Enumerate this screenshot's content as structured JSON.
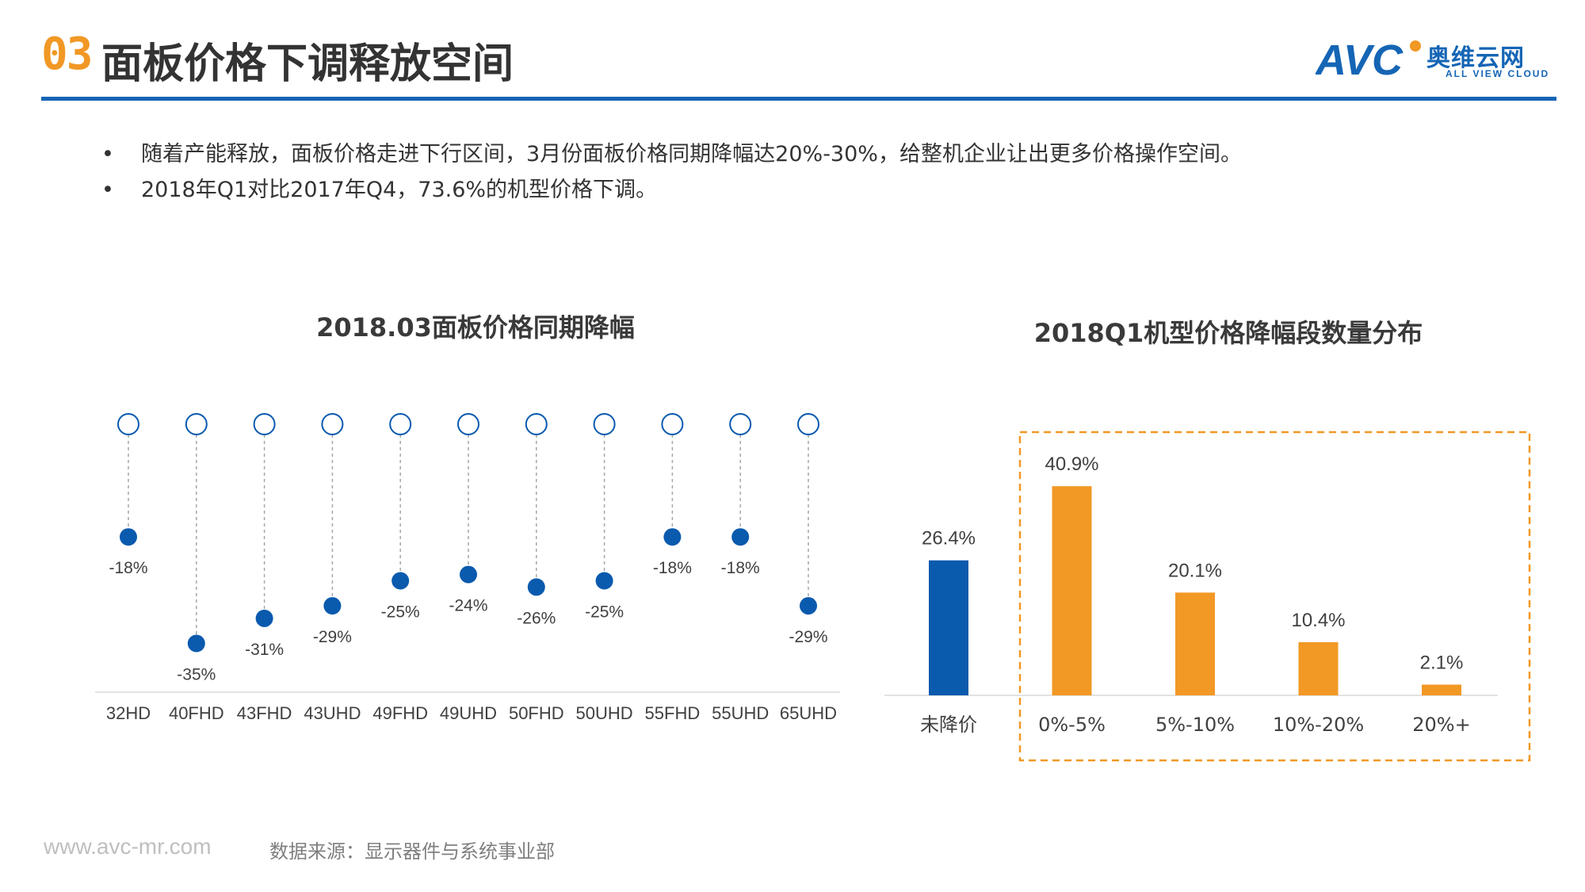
{
  "header": {
    "section_number": "03",
    "title": "面板价格下调释放空间",
    "logo_text": "AVC",
    "logo_cn": "奥维云网",
    "logo_en": "ALL VIEW CLOUD"
  },
  "bullets": [
    "随着产能释放，面板价格走进下行区间，3月份面板价格同期降幅达20%-30%，给整机企业让出更多价格操作空间。",
    "2018年Q1对比2017年Q4，73.6%的机型价格下调。"
  ],
  "bullet_symbol": "•",
  "colors": {
    "accent": "#F19825",
    "brand_blue": "#1565B5",
    "dot_blue": "#0A5AAE",
    "bar_orange": "#F19825"
  },
  "chart_data": [
    {
      "type": "scatter",
      "title": "2018.03面板价格同期降幅",
      "categories": [
        "32HD",
        "40FHD",
        "43FHD",
        "43UHD",
        "49FHD",
        "49UHD",
        "50FHD",
        "50UHD",
        "55FHD",
        "55UHD",
        "65UHD"
      ],
      "values": [
        -18,
        -35,
        -31,
        -29,
        -25,
        -24,
        -26,
        -25,
        -18,
        -18,
        -29
      ],
      "value_labels": [
        "-18%",
        "-35%",
        "-31%",
        "-29%",
        "-25%",
        "-24%",
        "-26%",
        "-25%",
        "-18%",
        "-18%",
        "-29%"
      ],
      "baseline": 0,
      "ylim": [
        -38,
        0
      ]
    },
    {
      "type": "bar",
      "title": "2018Q1机型价格降幅段数量分布",
      "categories": [
        "未降价",
        "0%-5%",
        "5%-10%",
        "10%-20%",
        "20%+"
      ],
      "values": [
        26.4,
        40.9,
        20.1,
        10.4,
        2.1
      ],
      "value_labels": [
        "26.4%",
        "40.9%",
        "20.1%",
        "10.4%",
        "2.1%"
      ],
      "highlighted_categories": [
        "0%-5%",
        "5%-10%",
        "10%-20%",
        "20%+"
      ],
      "ylim": [
        0,
        45
      ]
    }
  ],
  "footer": {
    "url": "www.avc-mr.com",
    "source": "数据来源：显示器件与系统事业部"
  }
}
